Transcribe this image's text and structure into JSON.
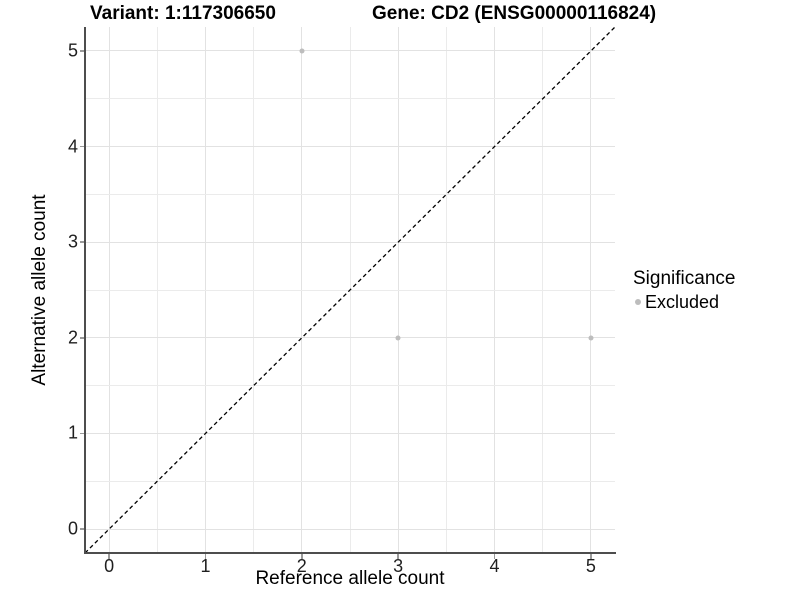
{
  "titles": {
    "variant": "Variant: 1:117306650",
    "gene": "Gene: CD2 (ENSG00000116824)"
  },
  "chart_data": {
    "type": "scatter",
    "title_left": "Variant: 1:117306650",
    "title_right": "Gene: CD2 (ENSG00000116824)",
    "xlabel": "Reference allele count",
    "ylabel": "Alternative allele count",
    "xlim": [
      -0.25,
      5.25
    ],
    "ylim": [
      -0.25,
      5.25
    ],
    "xticks": [
      0,
      1,
      2,
      3,
      4,
      5
    ],
    "yticks": [
      0,
      1,
      2,
      3,
      4,
      5
    ],
    "minor_grid_step": 0.5,
    "grid": true,
    "series": [
      {
        "name": "Excluded",
        "color": "#bdbdbd",
        "points": [
          [
            2,
            5
          ],
          [
            3,
            2
          ],
          [
            5,
            2
          ]
        ]
      }
    ],
    "reference_line": {
      "type": "identity",
      "style": "dashed",
      "color": "#000000"
    },
    "legend": {
      "title": "Significance",
      "position": "right",
      "items": [
        {
          "label": "Excluded",
          "color": "#bdbdbd"
        }
      ]
    },
    "colors": {
      "background": "#ffffff",
      "grid_major": "#e2e2e2",
      "grid_minor": "#ebebeb",
      "axis_line": "#4d4d4d",
      "tick_mark": "#9a9a9a",
      "tick_text": "#1f1f1f"
    }
  }
}
